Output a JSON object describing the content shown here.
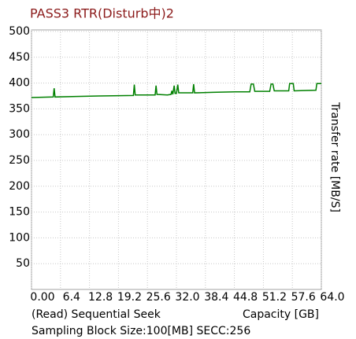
{
  "chart_data": {
    "type": "line",
    "title": "PASS3 RTR(Disturb中)2",
    "subtitle": "(Read) Sequential Seek",
    "x_label": "Capacity [GB]",
    "y_label": "Transfer rate [MB/S]",
    "footer": "Sampling Block Size:100[MB] SECC:256",
    "color": "#008000",
    "x": [
      0,
      4.8,
      5.0,
      5.2,
      10,
      15,
      22.5,
      22.7,
      22.9,
      25,
      27.3,
      27.5,
      27.7,
      30,
      30.8,
      31.0,
      31.2,
      31.5,
      31.7,
      32.0,
      32.3,
      32.5,
      35.6,
      35.8,
      36.0,
      40,
      45,
      48.2,
      48.5,
      49.0,
      49.3,
      52.6,
      52.9,
      53.3,
      53.6,
      56.8,
      57.0,
      57.8,
      58.0,
      62.8,
      63.0,
      64
    ],
    "values": [
      372,
      373,
      390,
      373,
      374,
      375,
      376,
      397,
      377,
      377,
      377,
      395,
      378,
      377,
      378,
      385,
      378,
      395,
      380,
      380,
      397,
      381,
      381,
      398,
      381,
      382,
      383,
      383,
      398,
      398,
      384,
      384,
      398,
      398,
      385,
      385,
      399,
      399,
      385,
      386,
      399,
      399
    ],
    "xlim": [
      0,
      64
    ],
    "xticks": [
      {
        "value": 0,
        "label": "0.00"
      },
      6.4,
      12.8,
      19.2,
      25.6,
      {
        "value": 32,
        "label": "32.0"
      },
      38.4,
      44.8,
      51.2,
      57.6,
      {
        "value": 64,
        "label": "64.0"
      }
    ],
    "ylim": [
      0,
      500
    ],
    "yticks": [
      50,
      100,
      150,
      200,
      250,
      300,
      350,
      400,
      450,
      500
    ],
    "grid": true
  }
}
